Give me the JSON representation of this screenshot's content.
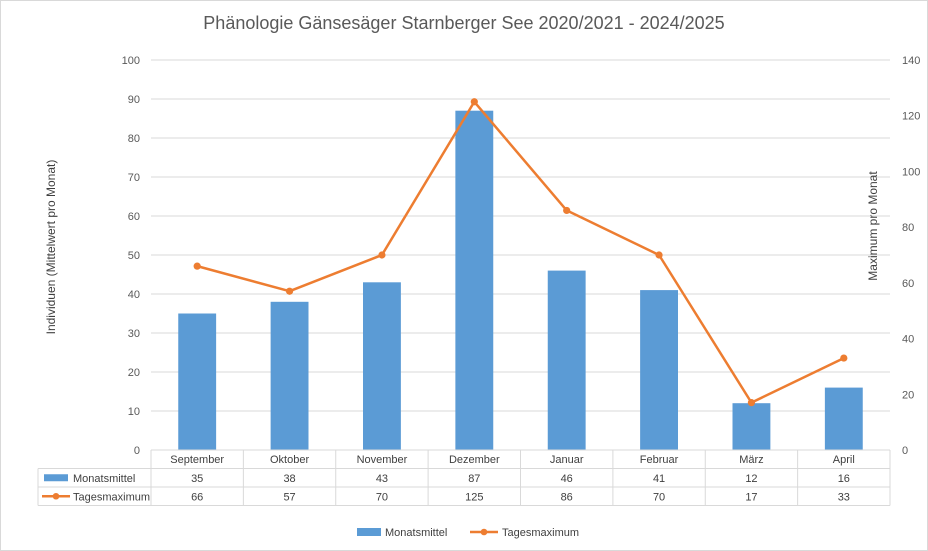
{
  "chart_data": {
    "type": "bar",
    "title": "Phänologie Gänsesäger Starnberger See 2020/2021 - 2024/2025",
    "ylabel": "Individuen (Mittelwert pro Monat)",
    "y2label": "Maximum pro Monat",
    "ylim": [
      0,
      100
    ],
    "y2lim": [
      0,
      140
    ],
    "yticks": [
      "0",
      "10",
      "20",
      "30",
      "40",
      "50",
      "60",
      "70",
      "80",
      "90",
      "100"
    ],
    "y2ticks": [
      "0",
      "20",
      "40",
      "60",
      "80",
      "100",
      "120",
      "140"
    ],
    "grid": true,
    "legend_position": "bottom",
    "categories": [
      "September",
      "Oktober",
      "November",
      "Dezember",
      "Januar",
      "Februar",
      "März",
      "April"
    ],
    "series": [
      {
        "name": "Monatsmittel",
        "type": "bar",
        "axis": "left",
        "color": "#5b9bd5",
        "values": [
          35,
          38,
          43,
          87,
          46,
          41,
          12,
          16
        ],
        "labels": [
          "35",
          "38",
          "43",
          "87",
          "46",
          "41",
          "12",
          "16"
        ]
      },
      {
        "name": "Tagesmaximum",
        "type": "line",
        "axis": "right",
        "color": "#ed7d31",
        "values": [
          66,
          57,
          70,
          125,
          86,
          70,
          17,
          33
        ],
        "labels": [
          "66",
          "57",
          "70",
          "125",
          "86",
          "70",
          "17",
          "33"
        ]
      }
    ]
  }
}
